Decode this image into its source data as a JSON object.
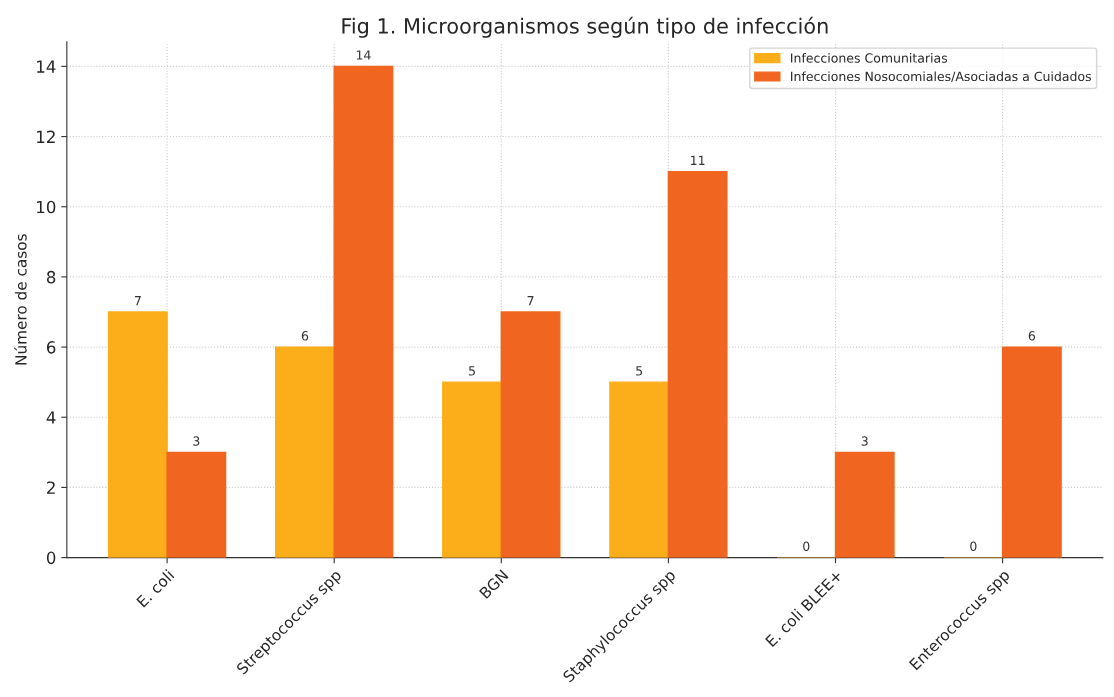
{
  "chart_data": {
    "type": "bar",
    "title": "Fig 1. Microorganismos según tipo de infección",
    "ylabel": "Número de casos",
    "categories": [
      "E. coli",
      "Streptococcus spp",
      "BGN",
      "Staphylococcus spp",
      "E. coli BLEE+",
      "Enterococcus spp"
    ],
    "series": [
      {
        "name": "Infecciones Comunitarias",
        "color": "#fbae1a",
        "values": [
          7,
          6,
          5,
          5,
          0,
          0
        ]
      },
      {
        "name": "Infecciones Nosocomiales/Asociadas a Cuidados",
        "color": "#f0651f",
        "values": [
          3,
          14,
          7,
          11,
          3,
          6
        ]
      }
    ],
    "ylim": [
      0,
      14.7
    ],
    "yticks": [
      0,
      2,
      4,
      6,
      8,
      10,
      12,
      14
    ],
    "grid": true,
    "legend": "top right",
    "data_labels": true
  }
}
